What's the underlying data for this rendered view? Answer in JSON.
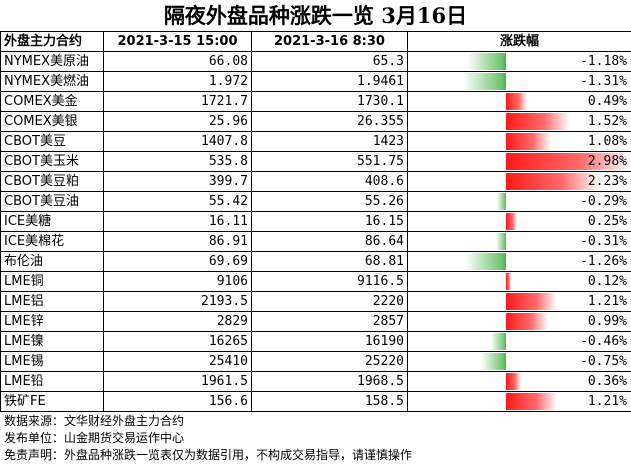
{
  "title": "隔夜外盘品种涨跌一览 3月16日",
  "header": {
    "contract": "外盘主力合约",
    "col1": "2021-3-15 15:00",
    "col2": "2021-3-16 8:30",
    "change": "涨跌幅"
  },
  "rows": [
    {
      "name": "NYMEX美原油",
      "v1": "66.08",
      "v2": "65.3",
      "pct": "-1.18%",
      "change": -1.18
    },
    {
      "name": "NYMEX美燃油",
      "v1": "1.972",
      "v2": "1.9461",
      "pct": "-1.31%",
      "change": -1.31
    },
    {
      "name": "COMEX美金",
      "v1": "1721.7",
      "v2": "1730.1",
      "pct": "0.49%",
      "change": 0.49
    },
    {
      "name": "COMEX美银",
      "v1": "25.96",
      "v2": "26.355",
      "pct": "1.52%",
      "change": 1.52
    },
    {
      "name": "CBOT美豆",
      "v1": "1407.8",
      "v2": "1423",
      "pct": "1.08%",
      "change": 1.08
    },
    {
      "name": "CBOT美玉米",
      "v1": "535.8",
      "v2": "551.75",
      "pct": "2.98%",
      "change": 2.98
    },
    {
      "name": "CBOT美豆粕",
      "v1": "399.7",
      "v2": "408.6",
      "pct": "2.23%",
      "change": 2.23
    },
    {
      "name": "CBOT美豆油",
      "v1": "55.42",
      "v2": "55.26",
      "pct": "-0.29%",
      "change": -0.29
    },
    {
      "name": "ICE美糖",
      "v1": "16.11",
      "v2": "16.15",
      "pct": "0.25%",
      "change": 0.25
    },
    {
      "name": "ICE美棉花",
      "v1": "86.91",
      "v2": "86.64",
      "pct": "-0.31%",
      "change": -0.31
    },
    {
      "name": "布伦油",
      "v1": "69.69",
      "v2": "68.81",
      "pct": "-1.26%",
      "change": -1.26
    },
    {
      "name": "LME铜",
      "v1": "9106",
      "v2": "9116.5",
      "pct": "0.12%",
      "change": 0.12
    },
    {
      "name": "LME铝",
      "v1": "2193.5",
      "v2": "2220",
      "pct": "1.21%",
      "change": 1.21
    },
    {
      "name": "LME锌",
      "v1": "2829",
      "v2": "2857",
      "pct": "0.99%",
      "change": 0.99
    },
    {
      "name": "LME镍",
      "v1": "16265",
      "v2": "16190",
      "pct": "-0.46%",
      "change": -0.46
    },
    {
      "name": "LME锡",
      "v1": "25410",
      "v2": "25220",
      "pct": "-0.75%",
      "change": -0.75
    },
    {
      "name": "LME铅",
      "v1": "1961.5",
      "v2": "1968.5",
      "pct": "0.36%",
      "change": 0.36
    },
    {
      "name": "铁矿FE",
      "v1": "156.6",
      "v2": "158.5",
      "pct": "1.21%",
      "change": 1.21
    }
  ],
  "footer": {
    "source": "数据来源：文华财经外盘主力合约",
    "publisher": "发布单位：山金期货交易运作中心",
    "disclaimer": "免责声明：外盘品种涨跌一览表仅为数据引用，不构成交易指导，请谨慎操作"
  },
  "colors": {
    "up": "#ff1a1a",
    "down": "#4caf50"
  }
}
